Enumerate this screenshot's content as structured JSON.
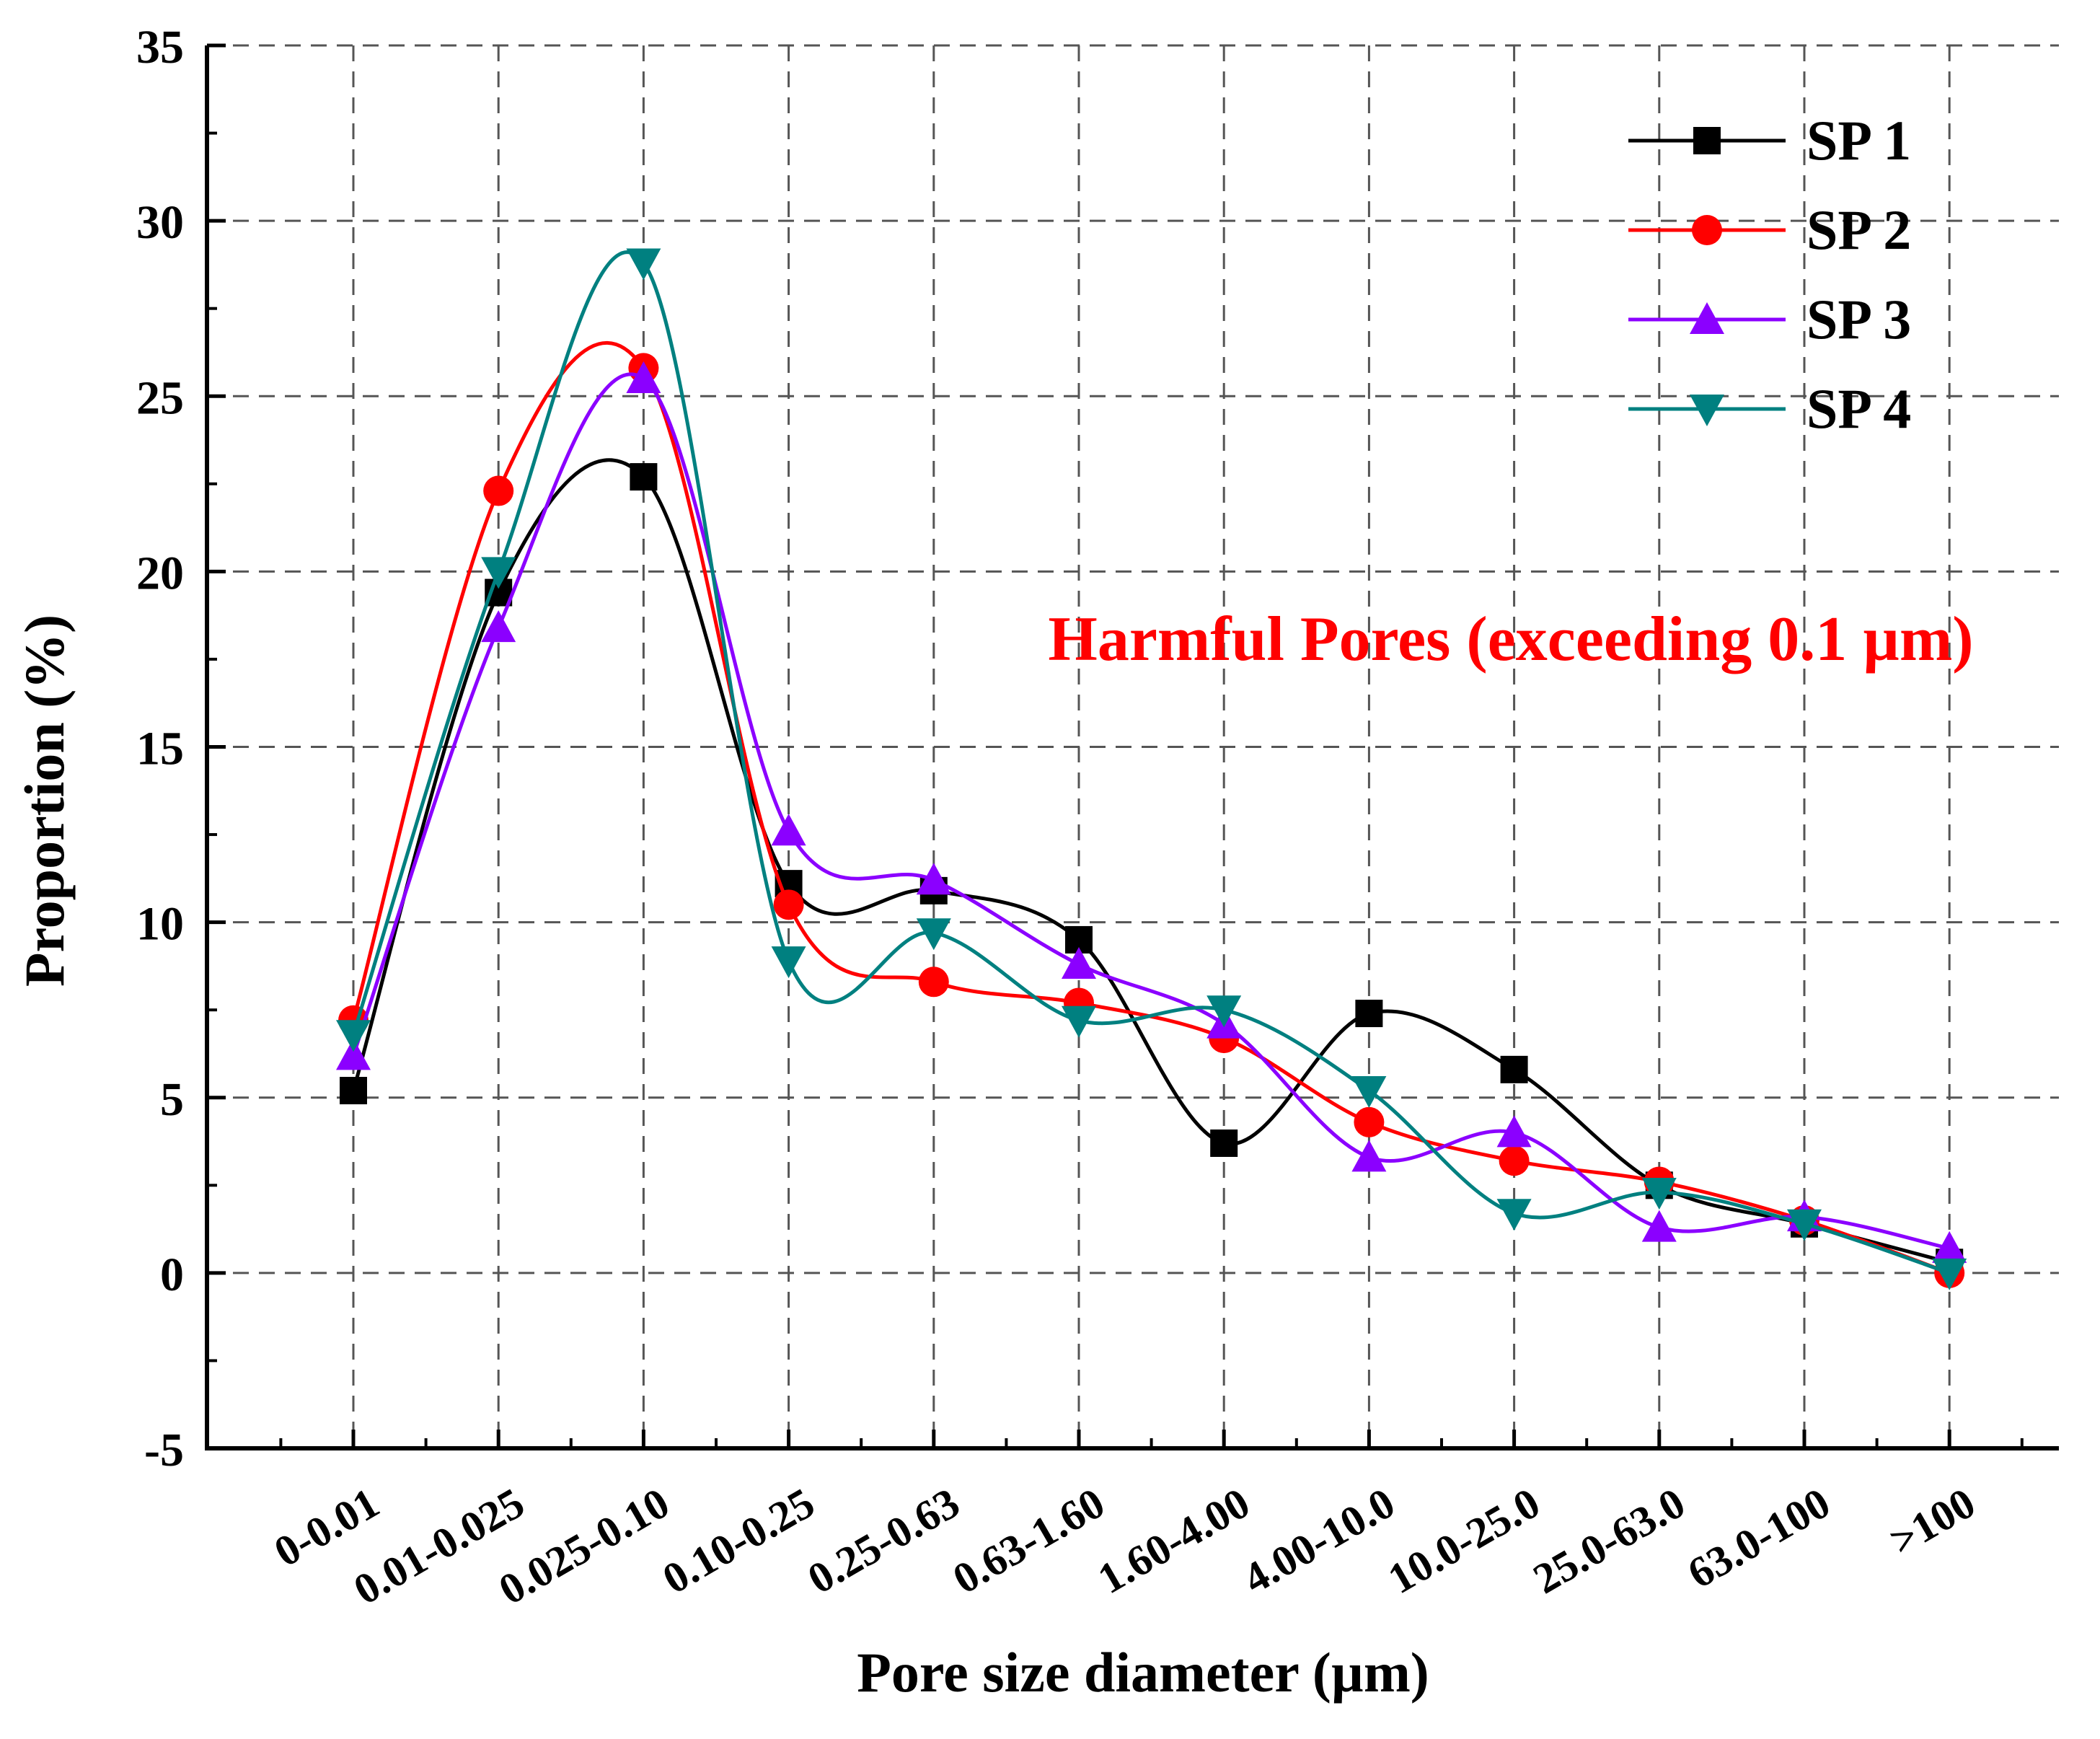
{
  "chart_data": {
    "type": "line",
    "title": "",
    "xlabel": "Pore size diameter (µm)",
    "ylabel": "Proportion (%)",
    "ylim": [
      -5,
      35
    ],
    "yticks": [
      -5,
      0,
      5,
      10,
      15,
      20,
      25,
      30,
      35
    ],
    "categories": [
      "0-0.01",
      "0.01-0.025",
      "0.025-0.10",
      "0.10-0.25",
      "0.25-0.63",
      "0.63-1.60",
      "1.60-4.00",
      "4.00-10.0",
      "10.0-25.0",
      "25.0-63.0",
      "63.0-100",
      ">100"
    ],
    "grid": true,
    "legend_position": "top-right",
    "series": [
      {
        "name": "SP 1",
        "color": "#000000",
        "marker": "square",
        "values": [
          5.2,
          19.4,
          22.7,
          11.1,
          10.9,
          9.5,
          3.7,
          7.4,
          5.8,
          2.5,
          1.4,
          0.3
        ]
      },
      {
        "name": "SP 2",
        "color": "#ff0000",
        "marker": "circle",
        "values": [
          7.2,
          22.3,
          25.8,
          10.5,
          8.3,
          7.7,
          6.7,
          4.3,
          3.2,
          2.6,
          1.5,
          0.0
        ]
      },
      {
        "name": "SP 3",
        "color": "#8b00ff",
        "marker": "triangle-up",
        "values": [
          6.2,
          18.4,
          25.5,
          12.6,
          11.2,
          8.8,
          7.1,
          3.3,
          4.0,
          1.3,
          1.6,
          0.7
        ]
      },
      {
        "name": "SP 4",
        "color": "#008080",
        "marker": "triangle-down",
        "values": [
          6.8,
          20.0,
          28.8,
          8.9,
          9.7,
          7.2,
          7.5,
          5.2,
          1.7,
          2.3,
          1.4,
          0.0
        ]
      }
    ],
    "annotations": [
      {
        "text": "Harmful Pores (exceeding 0.1 µm)",
        "color": "#ff0000"
      }
    ]
  }
}
